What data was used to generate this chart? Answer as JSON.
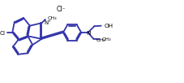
{
  "bg_color": "#ffffff",
  "line_color": "#3333aa",
  "lw": 1.3,
  "xlim": [
    0,
    22.7
  ],
  "ylim": [
    0,
    10.5
  ],
  "figsize": [
    2.27,
    1.05
  ],
  "dpi": 100
}
